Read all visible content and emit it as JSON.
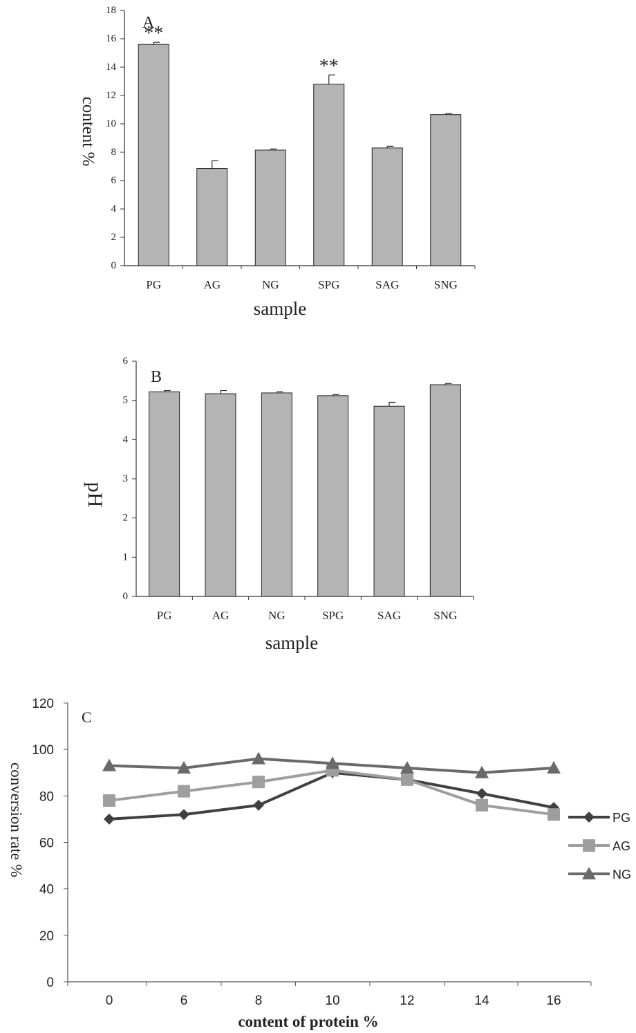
{
  "chart_data": [
    {
      "type": "bar",
      "panel_label": "A",
      "categories": [
        "PG",
        "AG",
        "NG",
        "SPG",
        "SAG",
        "SNG"
      ],
      "values": [
        15.6,
        6.85,
        8.15,
        12.8,
        8.3,
        10.65
      ],
      "errors": [
        0.15,
        0.55,
        0.08,
        0.65,
        0.12,
        0.08
      ],
      "annotations": [
        "**",
        "",
        "",
        "**",
        "",
        ""
      ],
      "xlabel": "sample",
      "ylabel": "content %",
      "ylim": [
        0,
        18
      ],
      "yticks": [
        0,
        2,
        4,
        6,
        8,
        10,
        12,
        14,
        16,
        18
      ],
      "bar_color": "#b4b4b4",
      "grid": false
    },
    {
      "type": "bar",
      "panel_label": "B",
      "categories": [
        "PG",
        "AG",
        "NG",
        "SPG",
        "SAG",
        "SNG"
      ],
      "values": [
        5.22,
        5.17,
        5.19,
        5.12,
        4.85,
        5.4
      ],
      "errors": [
        0.03,
        0.08,
        0.03,
        0.03,
        0.1,
        0.03
      ],
      "xlabel": "sample",
      "ylabel": "pH",
      "ylim": [
        0,
        6
      ],
      "yticks": [
        0,
        1,
        2,
        3,
        4,
        5,
        6
      ],
      "bar_color": "#b4b4b4",
      "grid": false
    },
    {
      "type": "line",
      "panel_label": "C",
      "x": [
        "0",
        "6",
        "8",
        "10",
        "12",
        "14",
        "16"
      ],
      "series": [
        {
          "name": "PG",
          "values": [
            70,
            72,
            76,
            90,
            87,
            81,
            75
          ],
          "color": "#404040",
          "marker": "diamond"
        },
        {
          "name": "AG",
          "values": [
            78,
            82,
            86,
            91,
            87,
            76,
            72
          ],
          "color": "#9e9e9e",
          "marker": "square"
        },
        {
          "name": "NG",
          "values": [
            93,
            92,
            96,
            94,
            92,
            90,
            92
          ],
          "color": "#6a6a6a",
          "marker": "triangle"
        }
      ],
      "xlabel": "content  of  protein %",
      "ylabel": "conversion rate %",
      "ylim": [
        0,
        120
      ],
      "yticks": [
        0,
        20,
        40,
        60,
        80,
        100,
        120
      ],
      "legend_position": "right",
      "grid": false
    }
  ]
}
